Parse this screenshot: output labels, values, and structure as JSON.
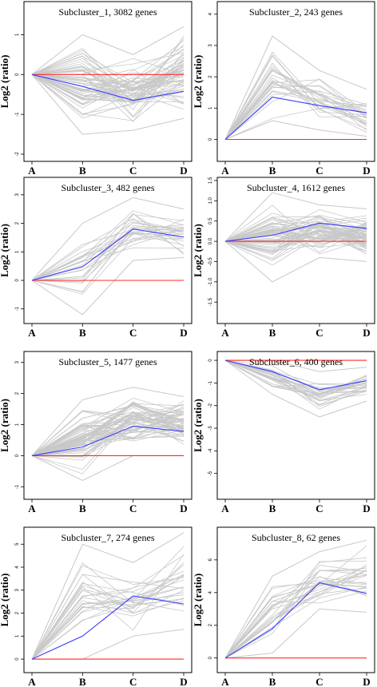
{
  "figure": {
    "colors": {
      "gene_lines": "#c8c8c8",
      "mean_line": "#3b3bff",
      "baseline": "#ff2a2a",
      "axis": "#000000"
    }
  },
  "chart_data": [
    {
      "type": "line",
      "title": "Subcluster_1, 3082 genes",
      "ylabel": "Log2 (ratio)",
      "categories": [
        "A",
        "B",
        "C",
        "D"
      ],
      "ylim": [
        -2.1,
        1.75
      ],
      "yticks": [
        -2,
        -1,
        0,
        1
      ],
      "series": [
        {
          "values": [
            0,
            -0.3,
            -0.65,
            -0.42
          ]
        },
        {
          "values": [
            0,
            0,
            0,
            0
          ]
        }
      ],
      "gene_band": {
        "count": 3082,
        "low": [
          0,
          -1.5,
          -1.4,
          -1.1
        ],
        "high": [
          0,
          1.0,
          0.5,
          1.2
        ]
      }
    },
    {
      "type": "line",
      "title": "Subcluster_2, 243 genes",
      "ylabel": "Log2 (ratio)",
      "categories": [
        "A",
        "B",
        "C",
        "D"
      ],
      "ylim": [
        -0.6,
        4.3
      ],
      "yticks": [
        0,
        1,
        2,
        3,
        4
      ],
      "series": [
        {
          "values": [
            0,
            1.35,
            1.08,
            0.85
          ]
        },
        {
          "values": [
            0,
            0,
            0,
            0
          ]
        }
      ],
      "gene_band": {
        "count": 243,
        "low": [
          0,
          0.6,
          0.3,
          0.1
        ],
        "high": [
          0,
          3.3,
          2.2,
          1.6
        ]
      }
    },
    {
      "type": "line",
      "title": "Subcluster_3, 482 genes",
      "ylabel": "Log2 (ratio)",
      "categories": [
        "A",
        "B",
        "C",
        "D"
      ],
      "ylim": [
        -1.4,
        3.5
      ],
      "yticks": [
        -1,
        0,
        1,
        2,
        3
      ],
      "series": [
        {
          "values": [
            0,
            0.48,
            1.8,
            1.52
          ]
        },
        {
          "values": [
            0,
            0,
            0,
            0
          ]
        }
      ],
      "gene_band": {
        "count": 482,
        "low": [
          0,
          -1.2,
          0.7,
          0.8
        ],
        "high": [
          0,
          2.0,
          2.9,
          2.5
        ]
      }
    },
    {
      "type": "line",
      "title": "Subcluster_4, 1612 genes",
      "ylabel": "Log2 (ratio)",
      "categories": [
        "A",
        "B",
        "C",
        "D"
      ],
      "ylim": [
        -1.95,
        1.5
      ],
      "yticks": [
        -1.5,
        -1.0,
        -0.5,
        0.0,
        0.5,
        1.0,
        1.5
      ],
      "series": [
        {
          "values": [
            0,
            0.15,
            0.45,
            0.32
          ]
        },
        {
          "values": [
            0,
            0,
            0,
            0
          ]
        }
      ],
      "gene_band": {
        "count": 1612,
        "low": [
          0,
          -1.0,
          -0.4,
          -0.5
        ],
        "high": [
          0,
          1.2,
          0.9,
          0.8
        ]
      }
    },
    {
      "type": "line",
      "title": "Subcluster_5, 1477 genes",
      "ylabel": "Log2 (ratio)",
      "categories": [
        "A",
        "B",
        "C",
        "D"
      ],
      "ylim": [
        -1.3,
        3.25
      ],
      "yticks": [
        -1,
        0,
        1,
        2,
        3
      ],
      "series": [
        {
          "values": [
            0,
            0.28,
            0.95,
            0.78
          ]
        },
        {
          "values": [
            0,
            0,
            0,
            0
          ]
        }
      ],
      "gene_band": {
        "count": 1477,
        "low": [
          0,
          -0.8,
          0.0,
          0.0
        ],
        "high": [
          0,
          1.8,
          2.2,
          1.9
        ]
      }
    },
    {
      "type": "line",
      "title": "Subcluster_6, 400 genes",
      "ylabel": "Log2 (ratio)",
      "categories": [
        "A",
        "B",
        "C",
        "D"
      ],
      "ylim": [
        -6.0,
        0.25
      ],
      "yticks": [
        -5,
        -4,
        -3,
        -2,
        -1,
        0
      ],
      "series": [
        {
          "values": [
            0,
            -0.5,
            -1.3,
            -0.9
          ]
        },
        {
          "values": [
            0,
            0,
            0,
            0
          ]
        }
      ],
      "gene_band": {
        "count": 400,
        "low": [
          0,
          -1.5,
          -2.5,
          -1.8
        ],
        "high": [
          0,
          0.0,
          -0.5,
          -0.3
        ]
      }
    },
    {
      "type": "line",
      "title": "Subcluster_7, 274 genes",
      "ylabel": "Log2 (ratio)",
      "categories": [
        "A",
        "B",
        "C",
        "D"
      ],
      "ylim": [
        -0.45,
        5.6
      ],
      "yticks": [
        0,
        1,
        2,
        3,
        4,
        5
      ],
      "series": [
        {
          "values": [
            0,
            1.0,
            2.75,
            2.4
          ]
        },
        {
          "values": [
            0,
            0,
            0,
            0
          ]
        }
      ],
      "gene_band": {
        "count": 274,
        "low": [
          0,
          0.0,
          1.0,
          1.3
        ],
        "high": [
          0,
          5.0,
          4.2,
          5.5
        ]
      }
    },
    {
      "type": "line",
      "title": "Subcluster_8, 62 genes",
      "ylabel": "Log2 (ratio)",
      "categories": [
        "A",
        "B",
        "C",
        "D"
      ],
      "ylim": [
        -0.7,
        7.8
      ],
      "yticks": [
        0,
        2,
        4,
        6
      ],
      "series": [
        {
          "values": [
            0,
            1.8,
            4.6,
            3.95
          ]
        },
        {
          "values": [
            0,
            0,
            0,
            0
          ]
        }
      ],
      "gene_band": {
        "count": 62,
        "low": [
          0,
          0.3,
          3.0,
          2.8
        ],
        "high": [
          0,
          5.0,
          6.5,
          7.2
        ]
      }
    }
  ]
}
